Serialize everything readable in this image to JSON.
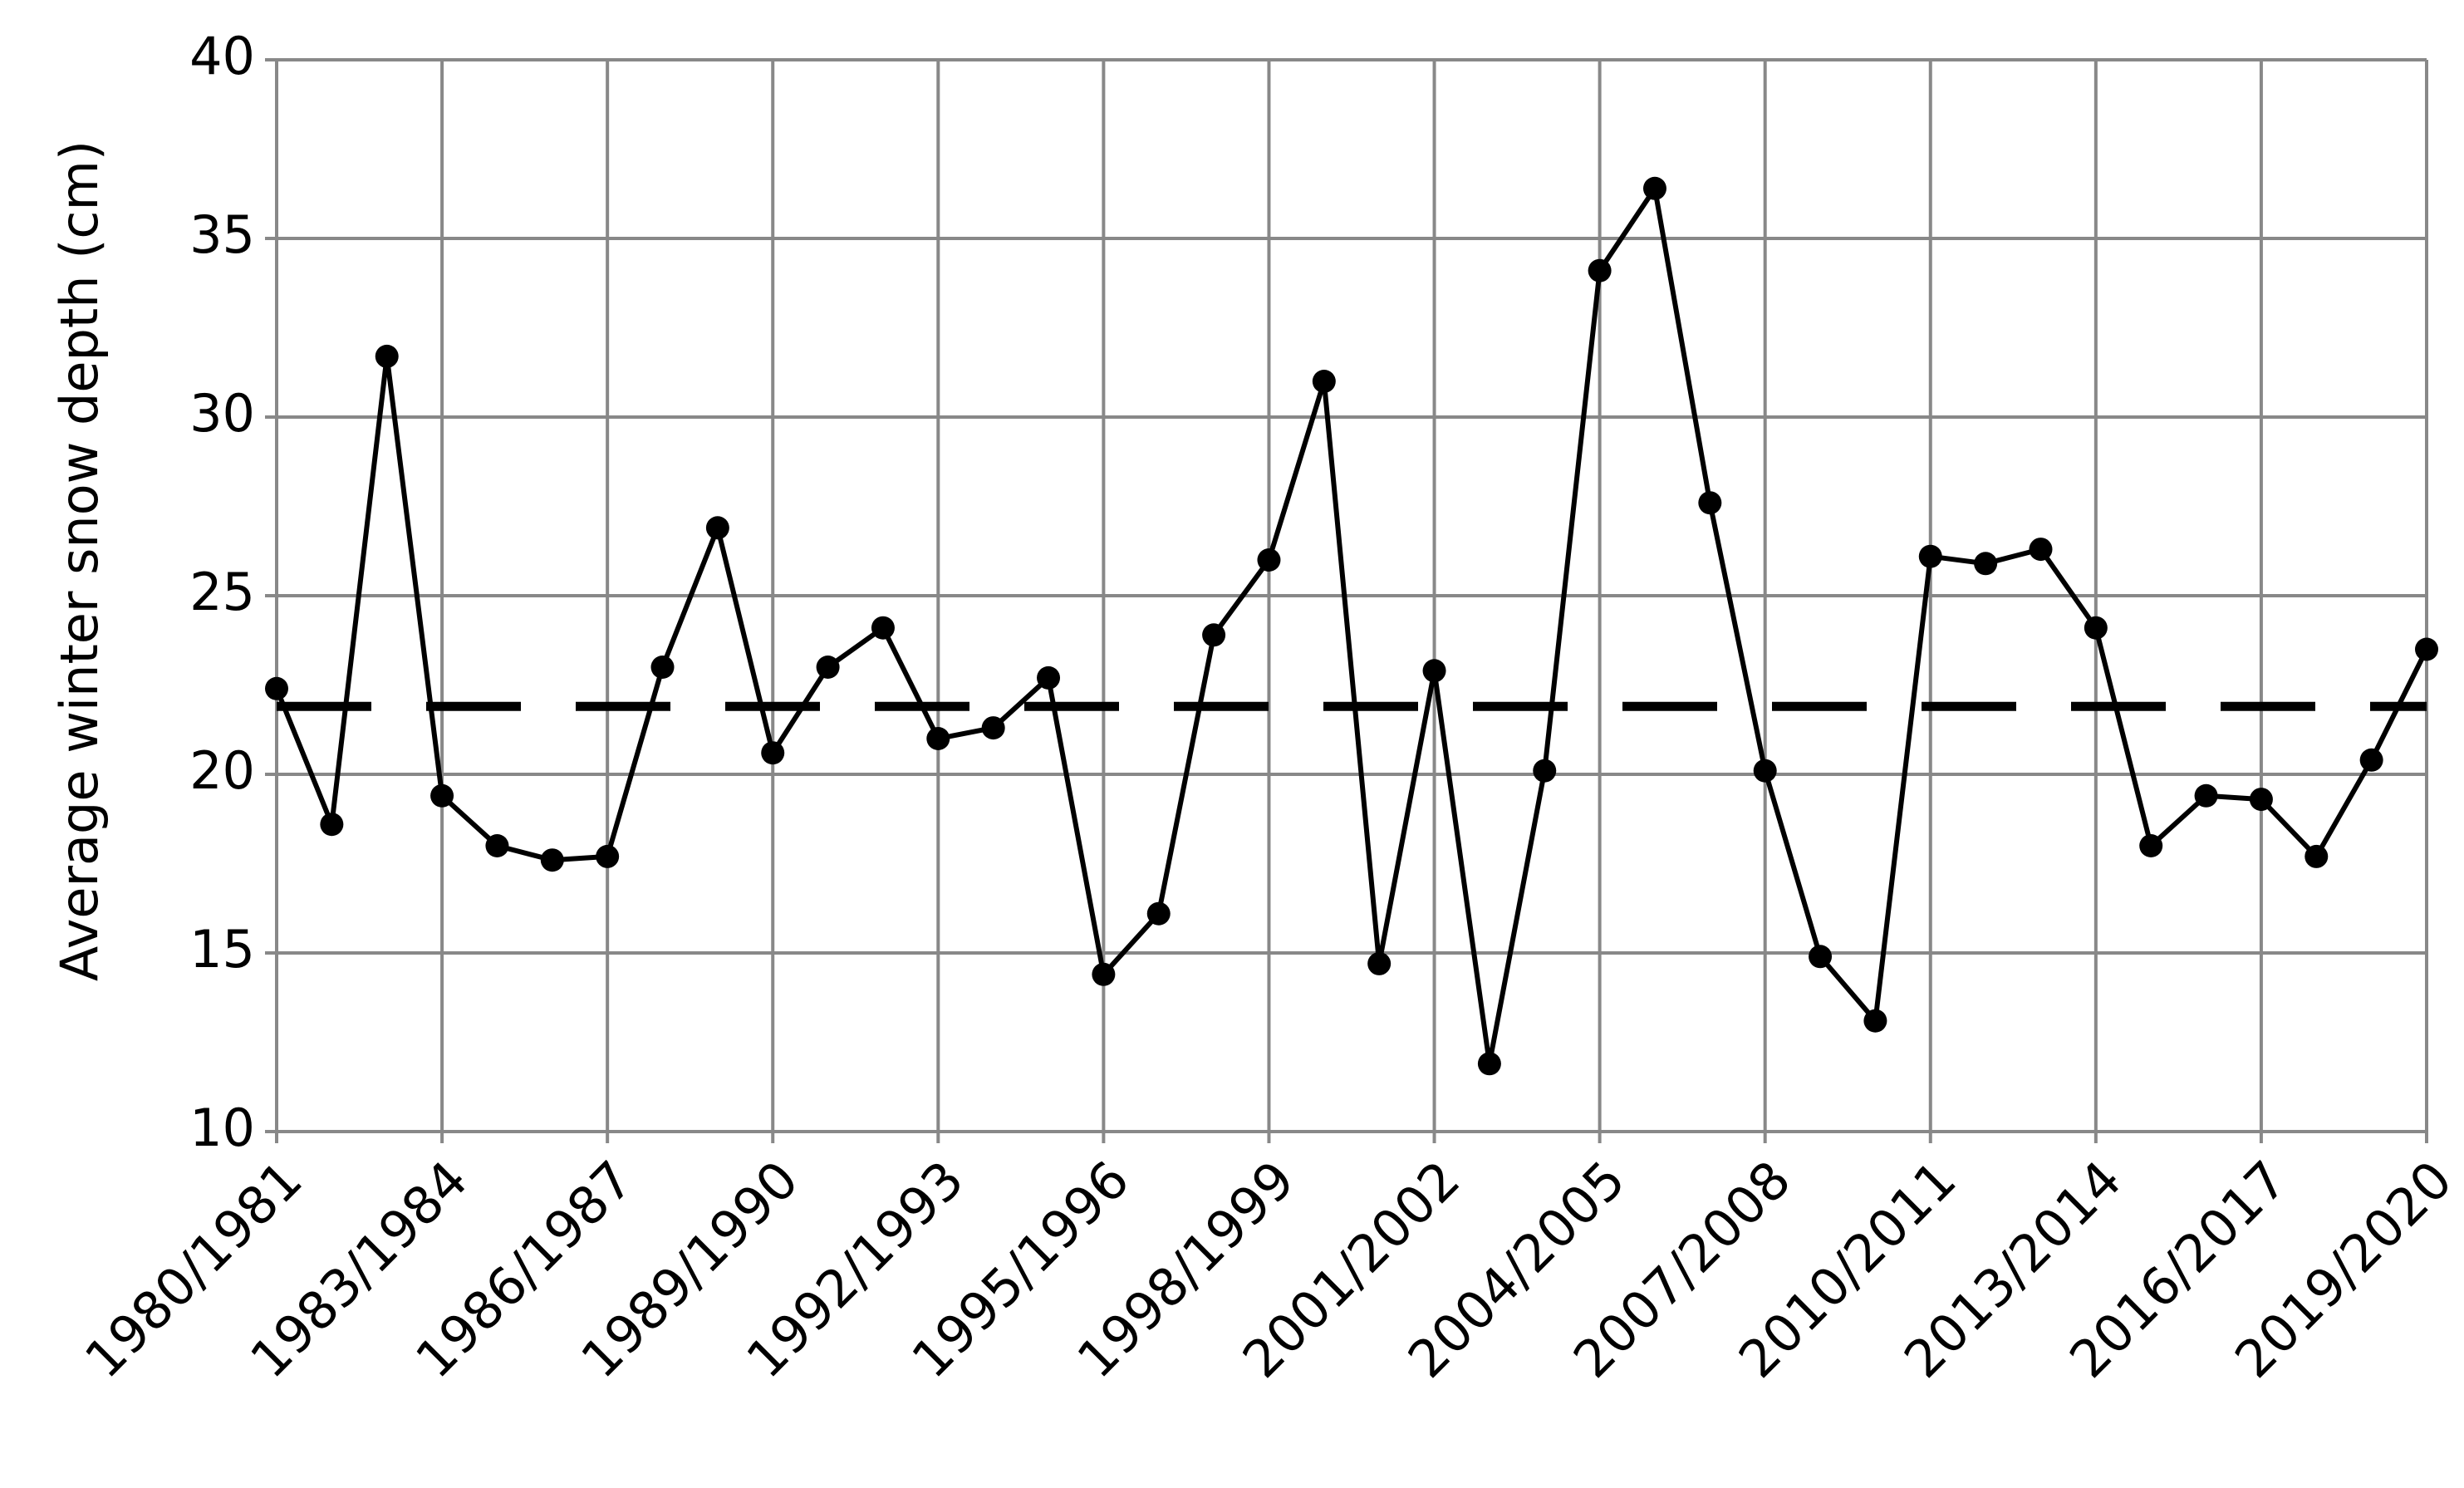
{
  "chart_data": {
    "type": "line",
    "y_label": "Average winter snow depth (cm)",
    "categories": [
      "1980/1981",
      null,
      null,
      "1983/1984",
      null,
      null,
      "1986/1987",
      null,
      null,
      "1989/1990",
      null,
      null,
      "1992/1993",
      null,
      null,
      "1995/1996",
      null,
      null,
      "1998/1999",
      null,
      null,
      "2001/2002",
      null,
      null,
      "2004/2005",
      null,
      null,
      "2007/2008",
      null,
      null,
      "2010/2011",
      null,
      null,
      "2013/2014",
      null,
      null,
      "2016/2017",
      null,
      null,
      "2019/2020"
    ],
    "series": [
      {
        "color": "#000000",
        "values": [
          22.4,
          18.6,
          31.7,
          19.4,
          18.0,
          17.6,
          17.7,
          23.0,
          26.9,
          20.6,
          23.0,
          24.1,
          21.0,
          21.3,
          22.7,
          14.4,
          16.1,
          23.9,
          26.0,
          31.0,
          14.7,
          22.9,
          11.9,
          20.1,
          34.1,
          36.4,
          27.6,
          20.1,
          14.9,
          13.1,
          26.1,
          25.9,
          26.3,
          24.1,
          18.0,
          19.4,
          19.3,
          17.7,
          20.4,
          23.5
        ]
      }
    ],
    "mean_line": 21.9,
    "ylim": [
      10,
      40
    ],
    "yticks": [
      10,
      15,
      20,
      25,
      30,
      35,
      40
    ],
    "grid": true
  }
}
